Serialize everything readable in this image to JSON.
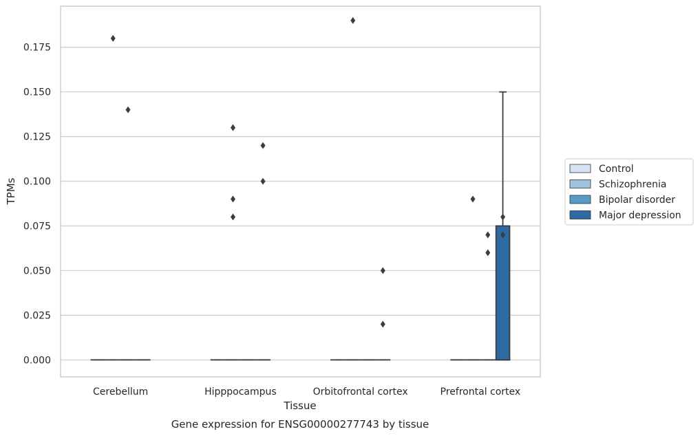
{
  "chart_data": {
    "type": "box",
    "title": "",
    "caption": "Gene expression for ENSG00000277743 by tissue",
    "xlabel": "Tissue",
    "ylabel": "TPMs",
    "categories": [
      "Cerebellum",
      "Hipppocampus",
      "Orbitofrontal cortex",
      "Prefrontal cortex"
    ],
    "ylim": [
      -0.0095,
      0.198
    ],
    "yticks": [
      "0.000",
      "0.025",
      "0.050",
      "0.075",
      "0.100",
      "0.125",
      "0.150",
      "0.175"
    ],
    "grid": true,
    "legend_position": "right-center",
    "series": [
      {
        "name": "Control",
        "color": "#d4e4f2",
        "boxes": [
          {
            "category": "Cerebellum",
            "q1": 0,
            "median": 0,
            "q3": 0,
            "whisker_low": 0,
            "whisker_high": 0,
            "outliers": []
          },
          {
            "category": "Hipppocampus",
            "q1": 0,
            "median": 0,
            "q3": 0,
            "whisker_low": 0,
            "whisker_high": 0,
            "outliers": []
          },
          {
            "category": "Orbitofrontal cortex",
            "q1": 0,
            "median": 0,
            "q3": 0,
            "whisker_low": 0,
            "whisker_high": 0,
            "outliers": []
          },
          {
            "category": "Prefrontal cortex",
            "q1": 0,
            "median": 0,
            "q3": 0,
            "whisker_low": 0,
            "whisker_high": 0,
            "outliers": []
          }
        ]
      },
      {
        "name": "Schizophrenia",
        "color": "#9ec4de",
        "boxes": [
          {
            "category": "Cerebellum",
            "q1": 0,
            "median": 0,
            "q3": 0,
            "whisker_low": 0,
            "whisker_high": 0,
            "outliers": [
              0.18
            ]
          },
          {
            "category": "Hipppocampus",
            "q1": 0,
            "median": 0,
            "q3": 0,
            "whisker_low": 0,
            "whisker_high": 0,
            "outliers": [
              0.13,
              0.09,
              0.08
            ]
          },
          {
            "category": "Orbitofrontal cortex",
            "q1": 0,
            "median": 0,
            "q3": 0,
            "whisker_low": 0,
            "whisker_high": 0,
            "outliers": [
              0.19
            ]
          },
          {
            "category": "Prefrontal cortex",
            "q1": 0,
            "median": 0,
            "q3": 0,
            "whisker_low": 0,
            "whisker_high": 0,
            "outliers": [
              0.09
            ]
          }
        ]
      },
      {
        "name": "Bipolar disorder",
        "color": "#5a9ac6",
        "boxes": [
          {
            "category": "Cerebellum",
            "q1": 0,
            "median": 0,
            "q3": 0,
            "whisker_low": 0,
            "whisker_high": 0,
            "outliers": [
              0.14
            ]
          },
          {
            "category": "Hipppocampus",
            "q1": 0,
            "median": 0,
            "q3": 0,
            "whisker_low": 0,
            "whisker_high": 0,
            "outliers": []
          },
          {
            "category": "Orbitofrontal cortex",
            "q1": 0,
            "median": 0,
            "q3": 0,
            "whisker_low": 0,
            "whisker_high": 0,
            "outliers": []
          },
          {
            "category": "Prefrontal cortex",
            "q1": 0,
            "median": 0,
            "q3": 0,
            "whisker_low": 0,
            "whisker_high": 0,
            "outliers": [
              0.07,
              0.06
            ]
          }
        ]
      },
      {
        "name": "Major depression",
        "color": "#2c6aa3",
        "boxes": [
          {
            "category": "Cerebellum",
            "q1": 0,
            "median": 0,
            "q3": 0,
            "whisker_low": 0,
            "whisker_high": 0,
            "outliers": []
          },
          {
            "category": "Hipppocampus",
            "q1": 0,
            "median": 0,
            "q3": 0,
            "whisker_low": 0,
            "whisker_high": 0,
            "outliers": [
              0.12,
              0.1
            ]
          },
          {
            "category": "Orbitofrontal cortex",
            "q1": 0,
            "median": 0,
            "q3": 0,
            "whisker_low": 0,
            "whisker_high": 0,
            "outliers": [
              0.05,
              0.02
            ]
          },
          {
            "category": "Prefrontal cortex",
            "q1": 0,
            "median": 0,
            "q3": 0.075,
            "whisker_low": 0,
            "whisker_high": 0.15,
            "outliers": [
              0.08,
              0.07
            ]
          }
        ]
      }
    ]
  }
}
